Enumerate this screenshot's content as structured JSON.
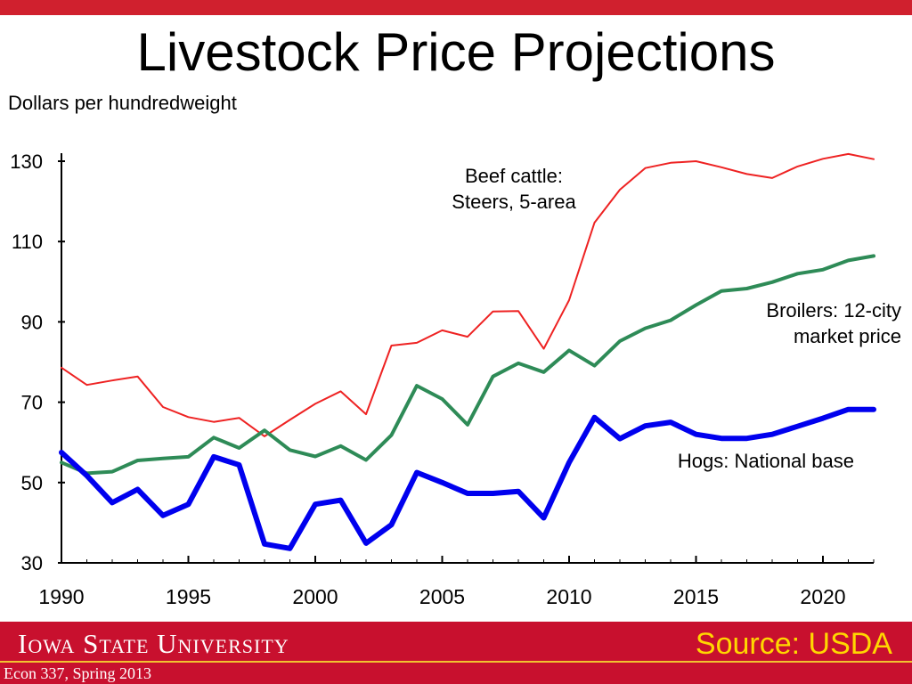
{
  "slide": {
    "title": "Livestock Price Projections",
    "y_unit": "Dollars per hundredweight"
  },
  "footer": {
    "university": "Iowa State University",
    "course": "Econ 337, Spring 2013",
    "source": "Source: USDA",
    "colors": {
      "bar": "#c8102e",
      "accent": "#f2c230",
      "source_text": "#ffd700"
    }
  },
  "chart_data": {
    "type": "line",
    "title": "",
    "xlabel": "",
    "ylabel": "Dollars per hundredweight",
    "xlim": [
      1990,
      2022
    ],
    "ylim": [
      30,
      132
    ],
    "x_ticks": [
      1990,
      1995,
      2000,
      2005,
      2010,
      2015,
      2020
    ],
    "y_ticks": [
      30,
      50,
      70,
      90,
      110,
      130
    ],
    "grid": false,
    "x": [
      1990,
      1991,
      1992,
      1993,
      1994,
      1995,
      1996,
      1997,
      1998,
      1999,
      2000,
      2001,
      2002,
      2003,
      2004,
      2005,
      2006,
      2007,
      2008,
      2009,
      2010,
      2011,
      2012,
      2013,
      2014,
      2015,
      2016,
      2017,
      2018,
      2019,
      2020,
      2021,
      2022
    ],
    "series": [
      {
        "name": "Beef cattle: Steers, 5-area",
        "label_lines": [
          "Beef cattle:",
          "Steers, 5-area"
        ],
        "color": "#ee2222",
        "values": [
          78.6,
          74.3,
          75.4,
          76.4,
          68.8,
          66.3,
          65.1,
          66.1,
          61.5,
          65.6,
          69.6,
          72.7,
          67.0,
          84.1,
          84.8,
          87.9,
          86.3,
          92.6,
          92.7,
          83.3,
          95.4,
          114.7,
          122.9,
          128.3,
          129.6,
          130.0,
          128.5,
          126.8,
          125.8,
          128.7,
          130.6,
          131.8,
          130.5
        ],
        "width": 2
      },
      {
        "name": "Broilers: 12-city market price",
        "label_lines": [
          "Broilers: 12-city",
          "market price"
        ],
        "color": "#2e8b57",
        "values": [
          55.0,
          52.3,
          52.7,
          55.5,
          56.0,
          56.4,
          61.2,
          58.6,
          63.0,
          58.1,
          56.5,
          59.1,
          55.6,
          61.8,
          74.1,
          70.8,
          64.4,
          76.4,
          79.7,
          77.5,
          82.9,
          79.1,
          85.2,
          88.4,
          90.4,
          94.2,
          97.7,
          98.3,
          99.9,
          102.0,
          103.0,
          105.3,
          106.4
        ],
        "width": 4
      },
      {
        "name": "Hogs: National base",
        "label_lines": [
          "Hogs: National base"
        ],
        "color": "#0000ee",
        "values": [
          57.5,
          51.7,
          45.0,
          48.3,
          41.8,
          44.6,
          56.4,
          54.4,
          34.7,
          33.6,
          44.6,
          45.6,
          34.9,
          39.5,
          52.5,
          50.0,
          47.3,
          47.3,
          47.8,
          41.2,
          55.0,
          66.2,
          60.9,
          64.1,
          65.0,
          62.0,
          61.0,
          61.0,
          62.0,
          64.0,
          66.0,
          68.2,
          68.2
        ],
        "width": 6
      }
    ]
  }
}
